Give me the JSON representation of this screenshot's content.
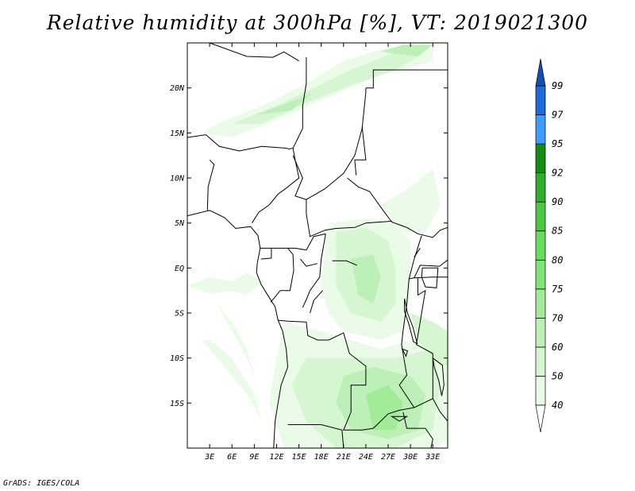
{
  "title": "Relative humidity at 300hPa [%], VT: 2019021300",
  "credit": "GrADS: IGES/COLA",
  "map": {
    "lon_range": [
      0,
      35
    ],
    "lat_range": [
      -20,
      25
    ],
    "lon_ticks": [
      3,
      6,
      9,
      12,
      15,
      18,
      21,
      24,
      27,
      30,
      33
    ],
    "lon_tick_labels": [
      "3E",
      "6E",
      "9E",
      "12E",
      "15E",
      "18E",
      "21E",
      "24E",
      "27E",
      "30E",
      "33E"
    ],
    "lat_ticks": [
      20,
      15,
      10,
      5,
      0,
      -5,
      -10,
      -15
    ],
    "lat_tick_labels": [
      "20N",
      "15N",
      "10N",
      "5N",
      "EQ",
      "5S",
      "10S",
      "15S"
    ]
  },
  "colorbar": {
    "levels": [
      "40",
      "50",
      "60",
      "70",
      "75",
      "80",
      "85",
      "90",
      "92",
      "95",
      "97",
      "99"
    ],
    "colors": [
      "#ffffff",
      "#eafbe7",
      "#d5f6d0",
      "#bdf0b6",
      "#a2eb98",
      "#82e379",
      "#66dc5b",
      "#4ac842",
      "#2fae2b",
      "#178c14",
      "#3f9cff",
      "#1f6bd9",
      "#134fb1"
    ]
  },
  "humidity_regions": [
    {
      "level": 1,
      "poly": [
        [
          4,
          16
        ],
        [
          10,
          18
        ],
        [
          16,
          20.5
        ],
        [
          21,
          23
        ],
        [
          27,
          24.5
        ],
        [
          33,
          24.5
        ],
        [
          33,
          23
        ],
        [
          26,
          21.5
        ],
        [
          19,
          19
        ],
        [
          12,
          16.5
        ],
        [
          6,
          14.5
        ],
        [
          2,
          15
        ]
      ]
    },
    {
      "level": 2,
      "poly": [
        [
          6,
          16
        ],
        [
          12,
          18
        ],
        [
          17,
          20
        ],
        [
          22,
          22
        ],
        [
          28,
          24
        ],
        [
          32,
          24
        ],
        [
          28,
          22
        ],
        [
          21,
          20
        ],
        [
          15,
          18
        ],
        [
          10,
          16
        ]
      ]
    },
    {
      "level": 3,
      "poly": [
        [
          9,
          17
        ],
        [
          14,
          18.5
        ],
        [
          17,
          19.5
        ],
        [
          14,
          17.5
        ]
      ]
    },
    {
      "level": 3,
      "poly": [
        [
          26,
          24
        ],
        [
          29,
          24.8
        ],
        [
          33,
          24.8
        ],
        [
          31,
          23.5
        ]
      ]
    },
    {
      "level": 1,
      "poly": [
        [
          19,
          5
        ],
        [
          24,
          5.5
        ],
        [
          28,
          5
        ],
        [
          30,
          3
        ],
        [
          30,
          -3
        ],
        [
          29,
          -7
        ],
        [
          26,
          -8
        ],
        [
          21,
          -7
        ],
        [
          19,
          -5
        ],
        [
          18,
          -2
        ],
        [
          18.5,
          2
        ]
      ]
    },
    {
      "level": 2,
      "poly": [
        [
          20,
          4
        ],
        [
          24,
          4.5
        ],
        [
          27,
          3
        ],
        [
          28,
          0
        ],
        [
          28,
          -4
        ],
        [
          26,
          -6
        ],
        [
          22,
          -5
        ],
        [
          20,
          -2
        ]
      ]
    },
    {
      "level": 3,
      "poly": [
        [
          22,
          1
        ],
        [
          25,
          1.5
        ],
        [
          26,
          -1
        ],
        [
          25,
          -4
        ],
        [
          23,
          -3
        ]
      ]
    },
    {
      "level": 1,
      "poly": [
        [
          26,
          7
        ],
        [
          30,
          9
        ],
        [
          33,
          11
        ],
        [
          34,
          7
        ],
        [
          32,
          4
        ],
        [
          29,
          4
        ]
      ]
    },
    {
      "level": 1,
      "poly": [
        [
          0,
          -2
        ],
        [
          3,
          -1
        ],
        [
          6,
          -1.5
        ],
        [
          8,
          -0.5
        ],
        [
          10,
          -1.5
        ],
        [
          8,
          -3
        ],
        [
          6,
          -2.5
        ],
        [
          3,
          -2.8
        ]
      ]
    },
    {
      "level": 1,
      "poly": [
        [
          4,
          -4
        ],
        [
          6,
          -6
        ],
        [
          8,
          -9
        ],
        [
          9,
          -12
        ],
        [
          8,
          -10
        ],
        [
          6,
          -7
        ]
      ]
    },
    {
      "level": 1,
      "poly": [
        [
          13,
          -6
        ],
        [
          18,
          -7
        ],
        [
          22,
          -8
        ],
        [
          26,
          -9
        ],
        [
          30,
          -8
        ],
        [
          33,
          -6
        ],
        [
          35,
          -8
        ],
        [
          35,
          -19
        ],
        [
          32,
          -21
        ],
        [
          22,
          -21
        ],
        [
          13,
          -20
        ],
        [
          11,
          -15
        ],
        [
          12,
          -10
        ]
      ]
    },
    {
      "level": 2,
      "poly": [
        [
          16,
          -10
        ],
        [
          22,
          -10
        ],
        [
          28,
          -10
        ],
        [
          33,
          -9
        ],
        [
          34,
          -13
        ],
        [
          33,
          -18
        ],
        [
          28,
          -20
        ],
        [
          20,
          -20
        ],
        [
          16,
          -17
        ],
        [
          14,
          -13
        ]
      ]
    },
    {
      "level": 3,
      "poly": [
        [
          21,
          -12
        ],
        [
          25,
          -11
        ],
        [
          30,
          -12
        ],
        [
          32,
          -14
        ],
        [
          31,
          -18
        ],
        [
          27,
          -19
        ],
        [
          22,
          -18
        ],
        [
          20,
          -15
        ]
      ]
    },
    {
      "level": 4,
      "poly": [
        [
          24,
          -14
        ],
        [
          27,
          -13
        ],
        [
          29,
          -15
        ],
        [
          28,
          -18
        ],
        [
          25,
          -18
        ]
      ]
    },
    {
      "level": 2,
      "poly": [
        [
          30,
          -5
        ],
        [
          33,
          -6
        ],
        [
          35,
          -7
        ],
        [
          35,
          -11
        ],
        [
          33,
          -10
        ],
        [
          31,
          -8
        ]
      ]
    },
    {
      "level": 1,
      "poly": [
        [
          2,
          -8
        ],
        [
          5,
          -11
        ],
        [
          8,
          -14
        ],
        [
          10,
          -17
        ],
        [
          9,
          -14
        ],
        [
          6,
          -10
        ],
        [
          3,
          -8
        ]
      ]
    }
  ],
  "boundaries": {
    "coast": [
      [
        0,
        5.8
      ],
      [
        3,
        6.4
      ],
      [
        5,
        5.6
      ],
      [
        6.5,
        4.4
      ],
      [
        8.5,
        4.6
      ],
      [
        9.5,
        3.6
      ],
      [
        9.8,
        2.2
      ],
      [
        9.4,
        0.5
      ],
      [
        9.3,
        -0.5
      ],
      [
        9.9,
        -1.8
      ],
      [
        10.8,
        -3
      ],
      [
        11.8,
        -4.3
      ],
      [
        12.2,
        -5.8
      ],
      [
        12.8,
        -7
      ],
      [
        13.3,
        -9
      ],
      [
        13.5,
        -11
      ],
      [
        12.6,
        -13
      ],
      [
        12.2,
        -15
      ],
      [
        11.8,
        -17
      ],
      [
        11.6,
        -20
      ]
    ],
    "borders": [
      [
        [
          3,
          25
        ],
        [
          8,
          23.5
        ],
        [
          11.5,
          23.4
        ],
        [
          13,
          24
        ],
        [
          15,
          23
        ]
      ],
      [
        [
          0,
          14.5
        ],
        [
          2.5,
          14.8
        ],
        [
          4.3,
          13.5
        ],
        [
          7,
          13
        ],
        [
          10,
          13.5
        ],
        [
          13.5,
          13.3
        ]
      ],
      [
        [
          3,
          12
        ],
        [
          3.6,
          11.5
        ],
        [
          2.8,
          9
        ],
        [
          2.7,
          6.4
        ]
      ],
      [
        [
          16,
          23.4
        ],
        [
          16,
          20.5
        ],
        [
          15.5,
          18
        ],
        [
          15.5,
          15.5
        ],
        [
          14.2,
          13.3
        ],
        [
          13.5,
          13.2
        ]
      ],
      [
        [
          14.2,
          13.3
        ],
        [
          14.5,
          12
        ],
        [
          15,
          10
        ],
        [
          13.5,
          9
        ],
        [
          12.2,
          8.2
        ],
        [
          11,
          7
        ],
        [
          9.6,
          6.2
        ],
        [
          8.7,
          5
        ]
      ],
      [
        [
          14.2,
          12.5
        ],
        [
          15.5,
          10
        ],
        [
          14.5,
          8
        ],
        [
          16,
          7.6
        ],
        [
          18.5,
          8.8
        ],
        [
          21,
          10.5
        ],
        [
          22.5,
          12.5
        ],
        [
          23.5,
          15.5
        ],
        [
          24,
          19.5
        ],
        [
          24,
          20
        ]
      ],
      [
        [
          24,
          20
        ],
        [
          25,
          20
        ],
        [
          25,
          22
        ],
        [
          35,
          22
        ]
      ],
      [
        [
          16,
          7.6
        ],
        [
          16,
          6
        ],
        [
          16.5,
          3.5
        ],
        [
          18.5,
          4.2
        ],
        [
          20,
          4.4
        ],
        [
          22.5,
          4.5
        ],
        [
          24,
          5
        ],
        [
          27.5,
          5.2
        ]
      ],
      [
        [
          21.5,
          10
        ],
        [
          23,
          9
        ],
        [
          24.5,
          8.5
        ],
        [
          26.5,
          6.2
        ],
        [
          27.5,
          5.1
        ],
        [
          29.5,
          4.5
        ],
        [
          31,
          3.8
        ],
        [
          33,
          3.4
        ],
        [
          34,
          4.2
        ],
        [
          35,
          4.5
        ]
      ],
      [
        [
          23.5,
          15.7
        ],
        [
          24,
          12
        ],
        [
          22.5,
          12
        ],
        [
          22.7,
          10.3
        ]
      ],
      [
        [
          9.8,
          2.2
        ],
        [
          11.3,
          2.2
        ],
        [
          13,
          2.2
        ],
        [
          14.5,
          2.2
        ],
        [
          16,
          2
        ]
      ],
      [
        [
          11.3,
          2.2
        ],
        [
          11.3,
          1.1
        ],
        [
          9.9,
          1
        ]
      ],
      [
        [
          13.5,
          2.2
        ],
        [
          14.2,
          1.5
        ],
        [
          14.3,
          -0.3
        ],
        [
          13.8,
          -2.5
        ],
        [
          12.5,
          -2.5
        ],
        [
          11.2,
          -3.8
        ]
      ],
      [
        [
          16,
          2
        ],
        [
          17,
          3.5
        ],
        [
          18.6,
          3.8
        ]
      ],
      [
        [
          18.6,
          3.8
        ],
        [
          18,
          1
        ],
        [
          17.8,
          -1
        ],
        [
          16.5,
          -2.5
        ],
        [
          16,
          -3.5
        ],
        [
          15.5,
          -4.4
        ]
      ],
      [
        [
          12.2,
          -5.8
        ],
        [
          13.5,
          -5.9
        ],
        [
          16,
          -6
        ],
        [
          16.2,
          -7.5
        ],
        [
          17.5,
          -8
        ],
        [
          19,
          -8
        ],
        [
          21,
          -7.2
        ],
        [
          21.8,
          -9.5
        ],
        [
          24,
          -10.9
        ],
        [
          24,
          -13
        ],
        [
          22,
          -13
        ],
        [
          22,
          -16
        ],
        [
          21,
          -18
        ],
        [
          23.5,
          -18
        ],
        [
          25,
          -17.8
        ]
      ],
      [
        [
          13.5,
          -17.4
        ],
        [
          18,
          -17.4
        ],
        [
          20.8,
          -18
        ],
        [
          21,
          -20
        ]
      ],
      [
        [
          25,
          -17.8
        ],
        [
          27,
          -16.2
        ],
        [
          28.5,
          -15.8
        ],
        [
          30.5,
          -15.5
        ],
        [
          33,
          -14.5
        ],
        [
          33,
          -9.5
        ]
      ],
      [
        [
          30.5,
          -15.5
        ],
        [
          28.5,
          -13
        ],
        [
          29.5,
          -11.9
        ],
        [
          28.8,
          -8.5
        ],
        [
          29,
          -7
        ],
        [
          29.5,
          -4
        ],
        [
          29.8,
          -1.2
        ],
        [
          30.5,
          1
        ],
        [
          31,
          2.3
        ],
        [
          31.5,
          3.6
        ]
      ],
      [
        [
          29.8,
          -1.2
        ],
        [
          30.5,
          -1.1
        ],
        [
          33,
          -1
        ],
        [
          35,
          -1
        ]
      ],
      [
        [
          31,
          -1.1
        ],
        [
          31,
          -3
        ],
        [
          32,
          -2.5
        ],
        [
          30.8,
          -8.5
        ],
        [
          33,
          -9.5
        ]
      ],
      [
        [
          33,
          -14.5
        ],
        [
          34,
          -16
        ],
        [
          35,
          -17
        ]
      ],
      [
        [
          29,
          -16
        ],
        [
          29.5,
          -17.8
        ],
        [
          32,
          -17.8
        ],
        [
          33,
          -19
        ],
        [
          32.5,
          -21
        ]
      ],
      [
        [
          27,
          -20
        ],
        [
          28,
          -21
        ]
      ],
      [
        [
          30.5,
          -1.1
        ],
        [
          31.3,
          0.3
        ],
        [
          33.9,
          0.2
        ],
        [
          35,
          0.9
        ]
      ]
    ],
    "lakes": [
      [
        [
          29.2,
          -3.4
        ],
        [
          29.6,
          -5
        ],
        [
          30.3,
          -6.5
        ],
        [
          30.9,
          -8.4
        ],
        [
          30.4,
          -8.2
        ],
        [
          29.8,
          -6.3
        ],
        [
          29.2,
          -4.8
        ]
      ],
      [
        [
          33,
          -10
        ],
        [
          34.3,
          -10.8
        ],
        [
          34.5,
          -13
        ],
        [
          34.2,
          -14.2
        ],
        [
          33.8,
          -12.5
        ],
        [
          33.2,
          -11
        ]
      ],
      [
        [
          28.9,
          -9
        ],
        [
          29.6,
          -9.2
        ],
        [
          29.4,
          -9.8
        ]
      ],
      [
        [
          27.5,
          -16.5
        ],
        [
          29.5,
          -16.5
        ],
        [
          28.5,
          -17
        ]
      ],
      [
        [
          31.6,
          0
        ],
        [
          33.7,
          0
        ],
        [
          33.5,
          -2.2
        ],
        [
          32,
          -2.1
        ],
        [
          31.5,
          -1
        ]
      ],
      [
        [
          30.5,
          1.2
        ],
        [
          31.3,
          2.2
        ],
        [
          30.8,
          1.6
        ]
      ]
    ],
    "rivers": [
      [
        [
          15.2,
          1
        ],
        [
          16,
          0.2
        ],
        [
          17.5,
          0.5
        ]
      ],
      [
        [
          19.5,
          0.8
        ],
        [
          21.4,
          0.8
        ],
        [
          22.8,
          0.3
        ]
      ],
      [
        [
          18.2,
          -2.5
        ],
        [
          17,
          -3.6
        ],
        [
          16.5,
          -5
        ]
      ]
    ]
  }
}
